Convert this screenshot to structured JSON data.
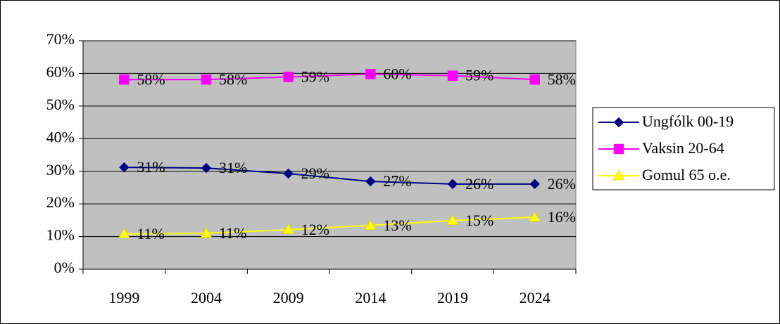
{
  "chart_data": {
    "type": "line",
    "categories": [
      "1999",
      "2004",
      "2009",
      "2014",
      "2019",
      "2024"
    ],
    "series": [
      {
        "name": "Ungfólk 00-19",
        "color": "#000080",
        "marker": "diamond",
        "values": [
          31.2,
          31.0,
          29.3,
          26.9,
          26.1,
          26.1
        ],
        "value_labels": [
          "31%",
          "31%",
          "29%",
          "27%",
          "26%",
          "26%"
        ]
      },
      {
        "name": "Vaksin 20-64",
        "color": "#ff00ff",
        "marker": "square",
        "values": [
          58.1,
          58.1,
          58.9,
          59.8,
          59.3,
          58.1
        ],
        "value_labels": [
          "58%",
          "58%",
          "59%",
          "60%",
          "59%",
          "58%"
        ]
      },
      {
        "name": "Gomul 65 o.e.",
        "color": "#ffff00",
        "marker": "triangle",
        "values": [
          10.8,
          11.0,
          12.1,
          13.4,
          14.9,
          15.9
        ],
        "value_labels": [
          "11%",
          "11%",
          "12%",
          "13%",
          "15%",
          "16%"
        ]
      }
    ],
    "ylim": [
      0,
      70
    ],
    "yticks": [
      {
        "value": 0,
        "label": "0%"
      },
      {
        "value": 10,
        "label": "10%"
      },
      {
        "value": 20,
        "label": "20%"
      },
      {
        "value": 30,
        "label": "30%"
      },
      {
        "value": 40,
        "label": "40%"
      },
      {
        "value": 50,
        "label": "50%"
      },
      {
        "value": 60,
        "label": "60%"
      },
      {
        "value": 70,
        "label": "70%"
      }
    ],
    "grid": true,
    "legend": "right",
    "plot_background": "#c0c0c0"
  }
}
